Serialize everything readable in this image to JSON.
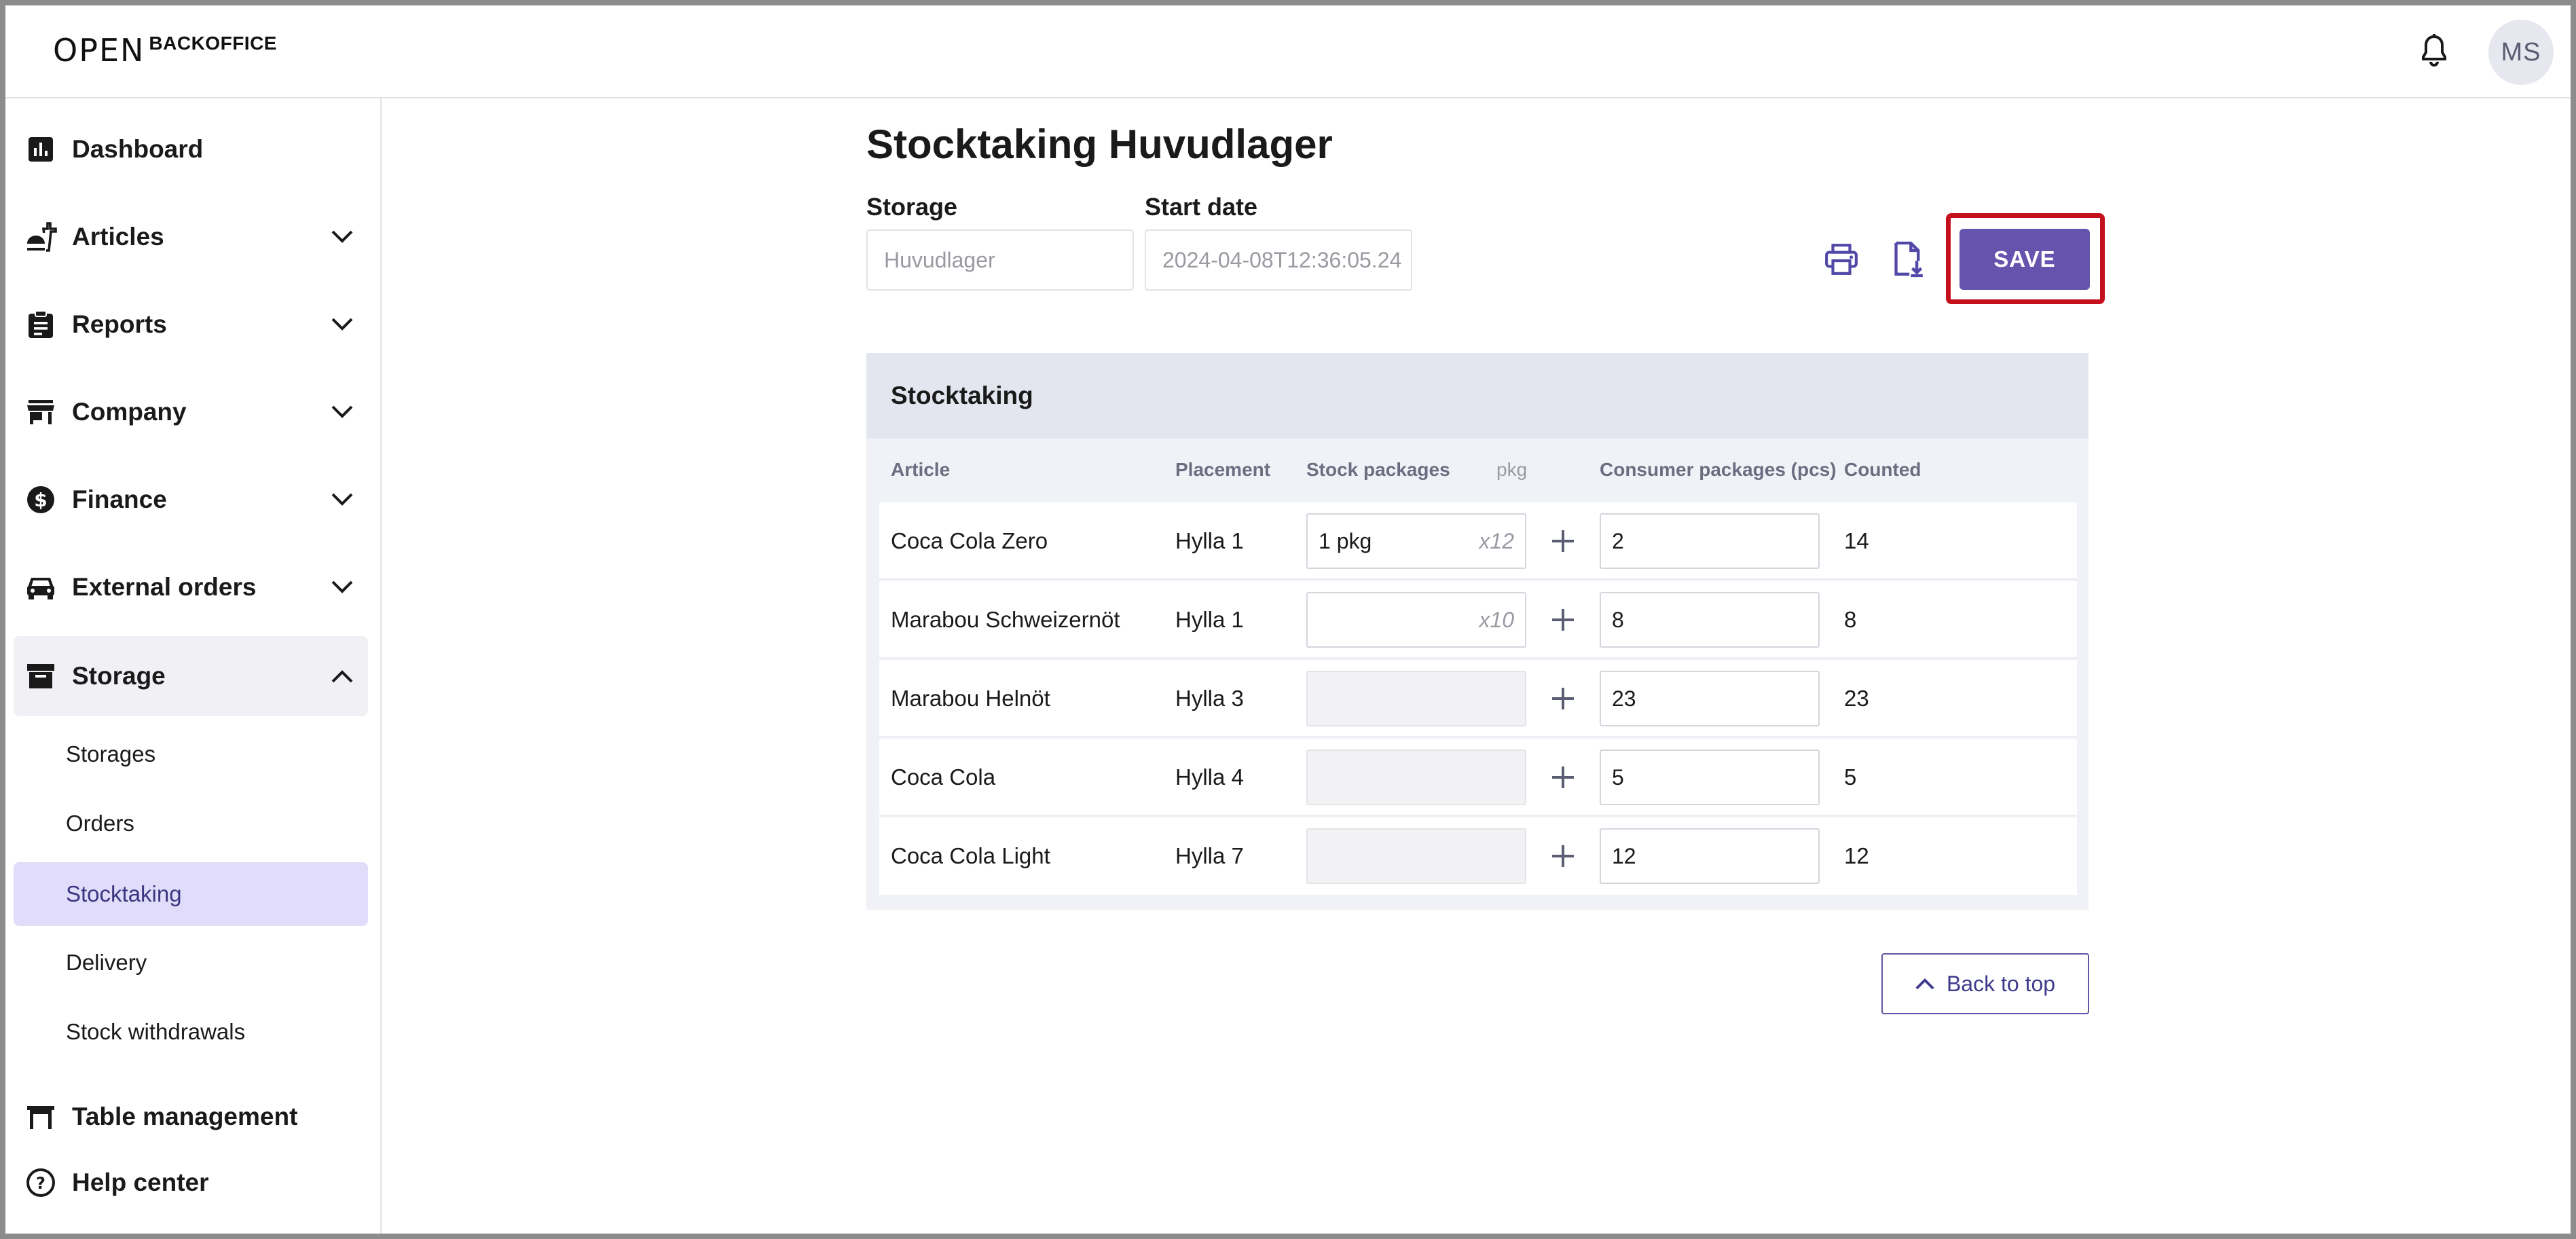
{
  "header": {
    "logo_mark": "OPEN",
    "logo_text": "BACKOFFICE",
    "avatar_initials": "MS"
  },
  "sidebar": {
    "items": [
      {
        "label": "Dashboard",
        "icon": "bar-chart-icon"
      },
      {
        "label": "Articles",
        "icon": "food-icon"
      },
      {
        "label": "Reports",
        "icon": "clipboard-icon"
      },
      {
        "label": "Company",
        "icon": "store-icon"
      },
      {
        "label": "Finance",
        "icon": "dollar-icon"
      },
      {
        "label": "External orders",
        "icon": "car-icon"
      },
      {
        "label": "Storage",
        "icon": "archive-icon"
      }
    ],
    "storage_sub": [
      {
        "label": "Storages"
      },
      {
        "label": "Orders"
      },
      {
        "label": "Stocktaking"
      },
      {
        "label": "Delivery"
      },
      {
        "label": "Stock withdrawals"
      }
    ],
    "bottom": [
      {
        "label": "Table management",
        "icon": "table-icon"
      },
      {
        "label": "Help center",
        "icon": "help-icon"
      }
    ]
  },
  "main": {
    "title": "Stocktaking Huvudlager",
    "storage_label": "Storage",
    "storage_placeholder": "Huvudlager",
    "start_date_label": "Start date",
    "start_date_value": "2024-04-08T12:36:05.24",
    "save_label": "SAVE",
    "back_to_top_label": "Back to top"
  },
  "stocktaking": {
    "title": "Stocktaking",
    "columns": {
      "article": "Article",
      "placement": "Placement",
      "stock_packages": "Stock packages",
      "pkg_unit": "pkg",
      "consumer_packages": "Consumer packages (pcs)",
      "counted": "Counted"
    },
    "rows": [
      {
        "article": "Coca Cola Zero",
        "placement": "Hylla 1",
        "stock_pkg": "1 pkg",
        "multiplier": "x12",
        "enabled": true,
        "consumer": "2",
        "counted": "14"
      },
      {
        "article": "Marabou Schweizernöt",
        "placement": "Hylla 1",
        "stock_pkg": "",
        "multiplier": "x10",
        "enabled": true,
        "consumer": "8",
        "counted": "8"
      },
      {
        "article": "Marabou Helnöt",
        "placement": "Hylla 3",
        "stock_pkg": "",
        "multiplier": "",
        "enabled": false,
        "consumer": "23",
        "counted": "23"
      },
      {
        "article": "Coca Cola",
        "placement": "Hylla 4",
        "stock_pkg": "",
        "multiplier": "",
        "enabled": false,
        "consumer": "5",
        "counted": "5"
      },
      {
        "article": "Coca Cola Light",
        "placement": "Hylla 7",
        "stock_pkg": "",
        "multiplier": "",
        "enabled": false,
        "consumer": "12",
        "counted": "12"
      }
    ]
  },
  "colors": {
    "primary": "#6553ae",
    "highlight": "#c4101c",
    "active_nav": "#e1dcfa"
  }
}
